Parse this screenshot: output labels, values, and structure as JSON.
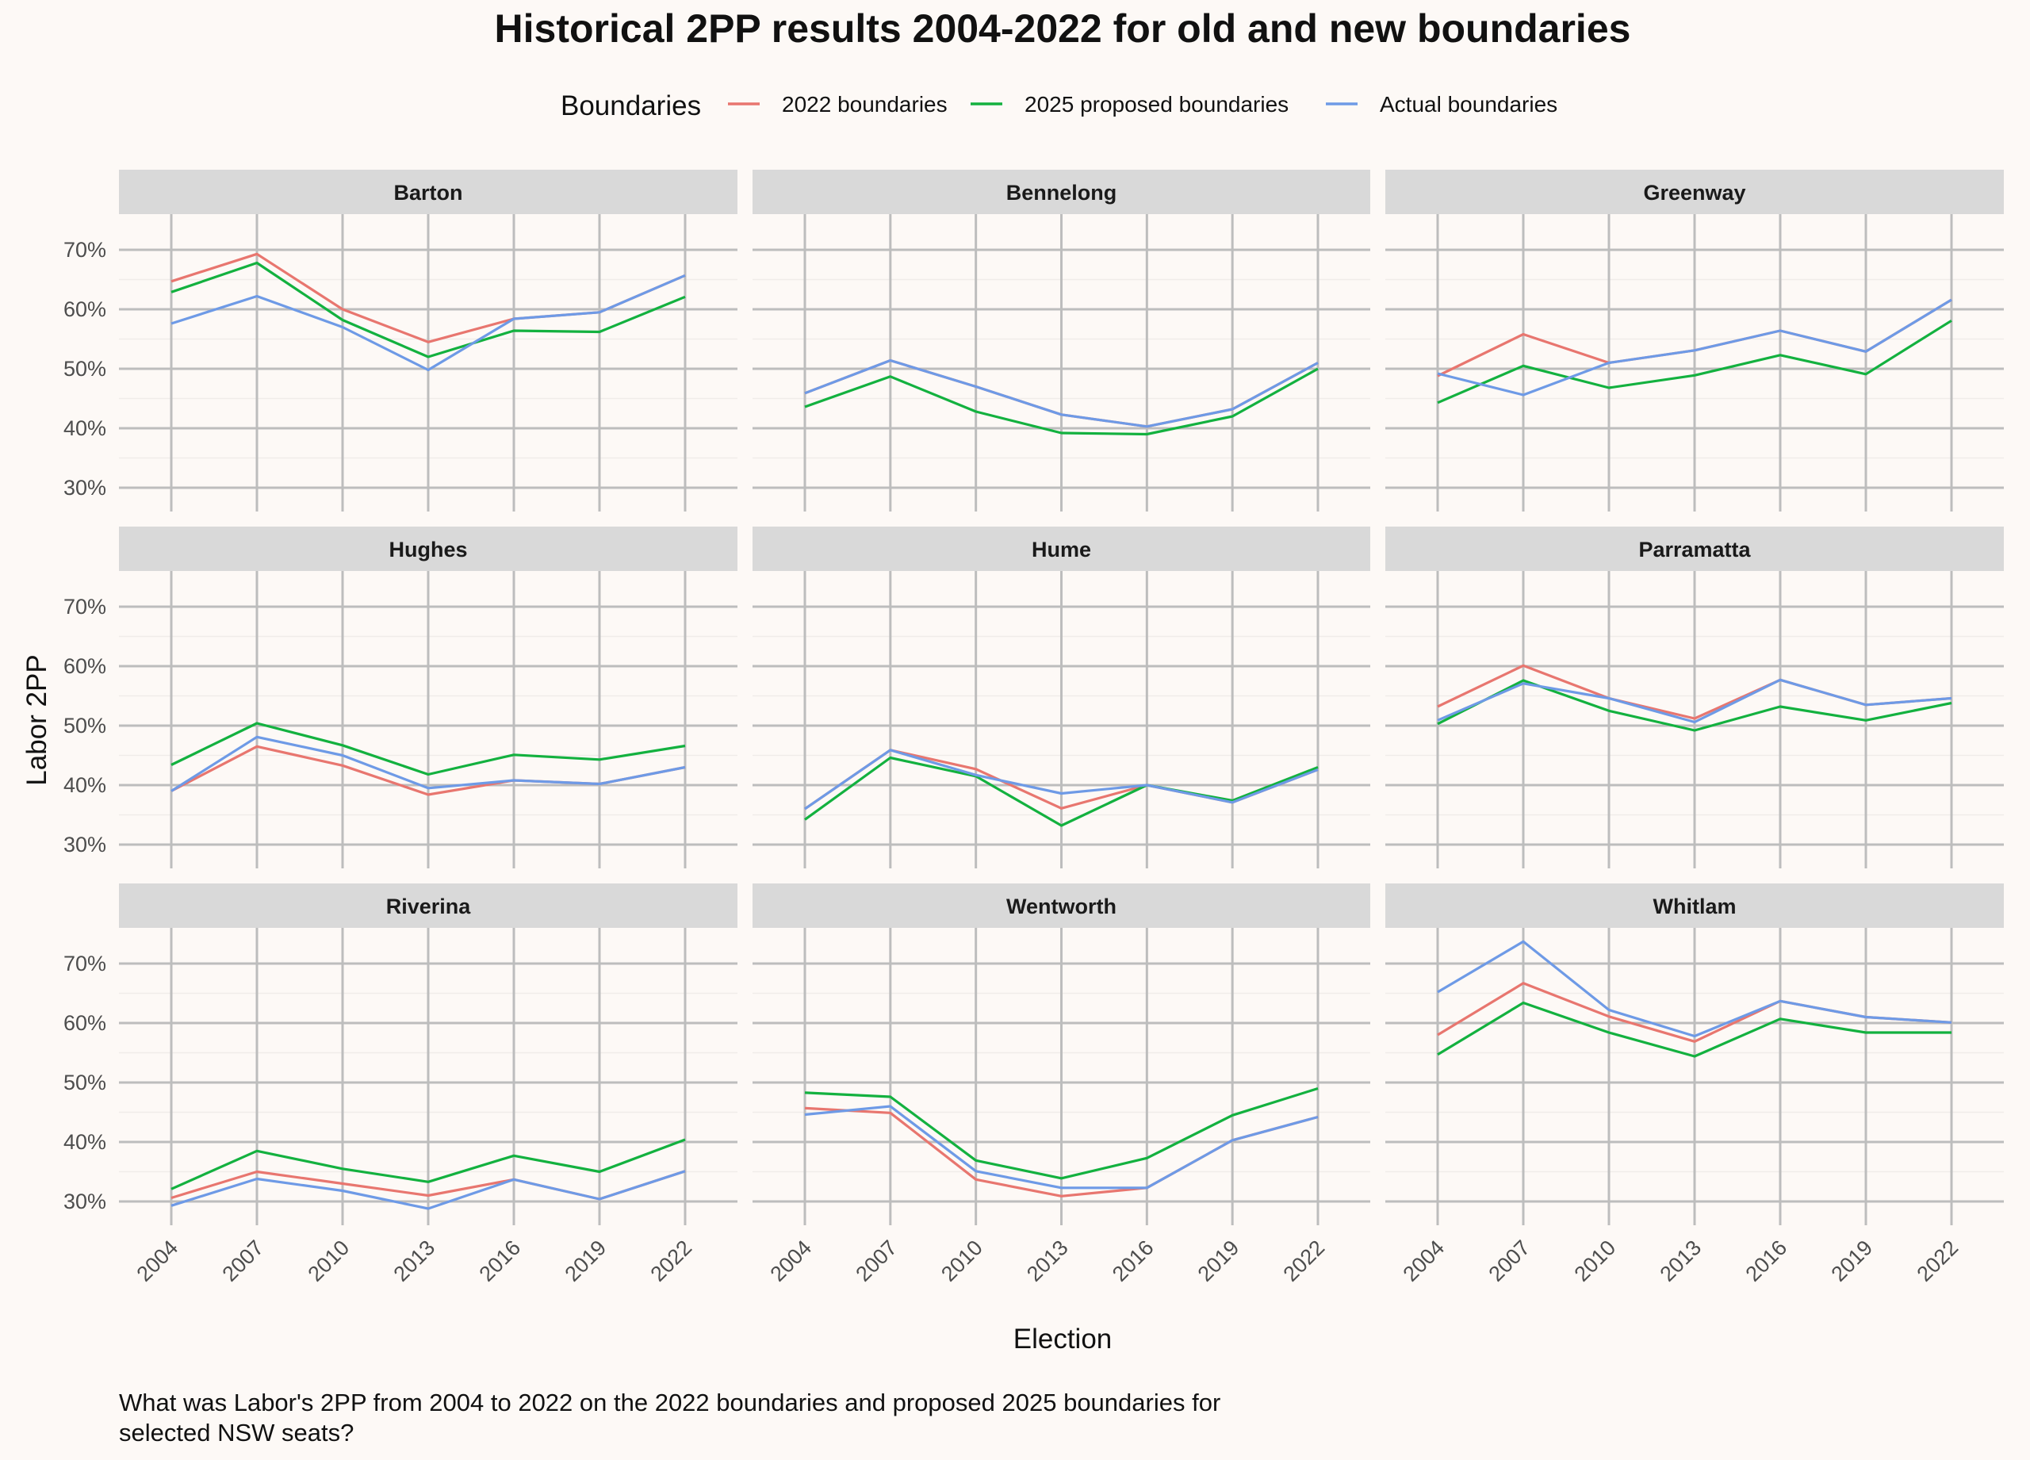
{
  "chart_data": {
    "type": "line",
    "title": "Historical 2PP results 2004-2022 for old and new boundaries",
    "xlabel": "Election",
    "ylabel": "Labor 2PP",
    "caption_lines": [
      "What was Labor's 2PP from 2004 to 2022 on the 2022 boundaries and proposed 2025 boundaries for",
      "selected NSW seats?"
    ],
    "legend": {
      "title": "Boundaries",
      "position": "top",
      "items": [
        {
          "name": "2022 boundaries",
          "color": "#e8766f"
        },
        {
          "name": "2025 proposed boundaries",
          "color": "#13b13f"
        },
        {
          "name": "Actual boundaries",
          "color": "#6e9ae6"
        }
      ]
    },
    "x": [
      "2004",
      "2007",
      "2010",
      "2013",
      "2016",
      "2019",
      "2022"
    ],
    "y_ticks": [
      "30%",
      "40%",
      "50%",
      "60%",
      "70%"
    ],
    "y_tick_values": [
      30,
      40,
      50,
      60,
      70
    ],
    "ylim": [
      26,
      76
    ],
    "grid": true,
    "facets": [
      {
        "name": "Barton",
        "series": [
          {
            "name": "2022 boundaries",
            "values": [
              64.7,
              69.3,
              60.0,
              54.5,
              58.4,
              59.5,
              65.7
            ]
          },
          {
            "name": "2025 proposed boundaries",
            "values": [
              62.9,
              67.8,
              58.2,
              52.0,
              56.4,
              56.2,
              62.1
            ]
          },
          {
            "name": "Actual boundaries",
            "values": [
              57.6,
              62.2,
              57.0,
              49.8,
              58.4,
              59.5,
              65.7
            ]
          }
        ]
      },
      {
        "name": "Bennelong",
        "series": [
          {
            "name": "2022 boundaries",
            "values": [
              45.9,
              51.4,
              47.0,
              42.3,
              40.3,
              43.2,
              51.0
            ]
          },
          {
            "name": "2025 proposed boundaries",
            "values": [
              43.6,
              48.7,
              42.8,
              39.2,
              39.0,
              42.0,
              50.0
            ]
          },
          {
            "name": "Actual boundaries",
            "values": [
              45.9,
              51.4,
              47.0,
              42.3,
              40.3,
              43.2,
              51.0
            ]
          }
        ]
      },
      {
        "name": "Greenway",
        "series": [
          {
            "name": "2022 boundaries",
            "values": [
              48.8,
              55.8,
              51.0,
              53.1,
              56.4,
              52.9,
              61.6
            ]
          },
          {
            "name": "2025 proposed boundaries",
            "values": [
              44.3,
              50.5,
              46.8,
              48.9,
              52.3,
              49.1,
              58.1
            ]
          },
          {
            "name": "Actual boundaries",
            "values": [
              49.2,
              45.6,
              51.0,
              53.1,
              56.4,
              52.9,
              61.6
            ]
          }
        ]
      },
      {
        "name": "Hughes",
        "series": [
          {
            "name": "2022 boundaries",
            "values": [
              39.0,
              46.5,
              43.3,
              38.4,
              40.8,
              40.2,
              43.0
            ]
          },
          {
            "name": "2025 proposed boundaries",
            "values": [
              43.4,
              50.4,
              46.7,
              41.8,
              45.1,
              44.3,
              46.6
            ]
          },
          {
            "name": "Actual boundaries",
            "values": [
              39.0,
              48.1,
              45.0,
              39.5,
              40.8,
              40.2,
              43.0
            ]
          }
        ]
      },
      {
        "name": "Hume",
        "series": [
          {
            "name": "2022 boundaries",
            "values": [
              36.0,
              45.9,
              42.7,
              36.1,
              40.0,
              37.1,
              42.6
            ]
          },
          {
            "name": "2025 proposed boundaries",
            "values": [
              34.2,
              44.6,
              41.5,
              33.2,
              40.0,
              37.4,
              43.0
            ]
          },
          {
            "name": "Actual boundaries",
            "values": [
              36.0,
              45.9,
              41.7,
              38.6,
              40.0,
              37.1,
              42.6
            ]
          }
        ]
      },
      {
        "name": "Parramatta",
        "series": [
          {
            "name": "2022 boundaries",
            "values": [
              53.2,
              60.1,
              54.6,
              51.2,
              57.7,
              53.5,
              54.6
            ]
          },
          {
            "name": "2025 proposed boundaries",
            "values": [
              50.3,
              57.6,
              52.5,
              49.2,
              53.2,
              50.9,
              53.8
            ]
          },
          {
            "name": "Actual boundaries",
            "values": [
              50.9,
              57.1,
              54.6,
              50.6,
              57.7,
              53.5,
              54.6
            ]
          }
        ]
      },
      {
        "name": "Riverina",
        "series": [
          {
            "name": "2022 boundaries",
            "values": [
              30.6,
              35.0,
              33.0,
              31.0,
              33.7,
              30.4,
              35.1
            ]
          },
          {
            "name": "2025 proposed boundaries",
            "values": [
              32.1,
              38.5,
              35.5,
              33.3,
              37.7,
              35.0,
              40.4
            ]
          },
          {
            "name": "Actual boundaries",
            "values": [
              29.3,
              33.8,
              31.8,
              28.8,
              33.7,
              30.4,
              35.1
            ]
          }
        ]
      },
      {
        "name": "Wentworth",
        "series": [
          {
            "name": "2022 boundaries",
            "values": [
              45.7,
              44.9,
              33.7,
              30.9,
              32.3,
              40.3,
              44.2
            ]
          },
          {
            "name": "2025 proposed boundaries",
            "values": [
              48.3,
              47.6,
              36.9,
              33.9,
              37.3,
              44.5,
              49.0
            ]
          },
          {
            "name": "Actual boundaries",
            "values": [
              44.6,
              46.0,
              35.1,
              32.3,
              32.3,
              40.3,
              44.2
            ]
          }
        ]
      },
      {
        "name": "Whitlam",
        "series": [
          {
            "name": "2022 boundaries",
            "values": [
              58.0,
              66.7,
              61.1,
              56.9,
              63.7,
              61.0,
              60.1
            ]
          },
          {
            "name": "2025 proposed boundaries",
            "values": [
              54.7,
              63.4,
              58.4,
              54.4,
              60.7,
              58.4,
              58.4
            ]
          },
          {
            "name": "Actual boundaries",
            "values": [
              65.2,
              73.7,
              62.2,
              57.8,
              63.7,
              61.0,
              60.1
            ]
          }
        ]
      }
    ]
  }
}
